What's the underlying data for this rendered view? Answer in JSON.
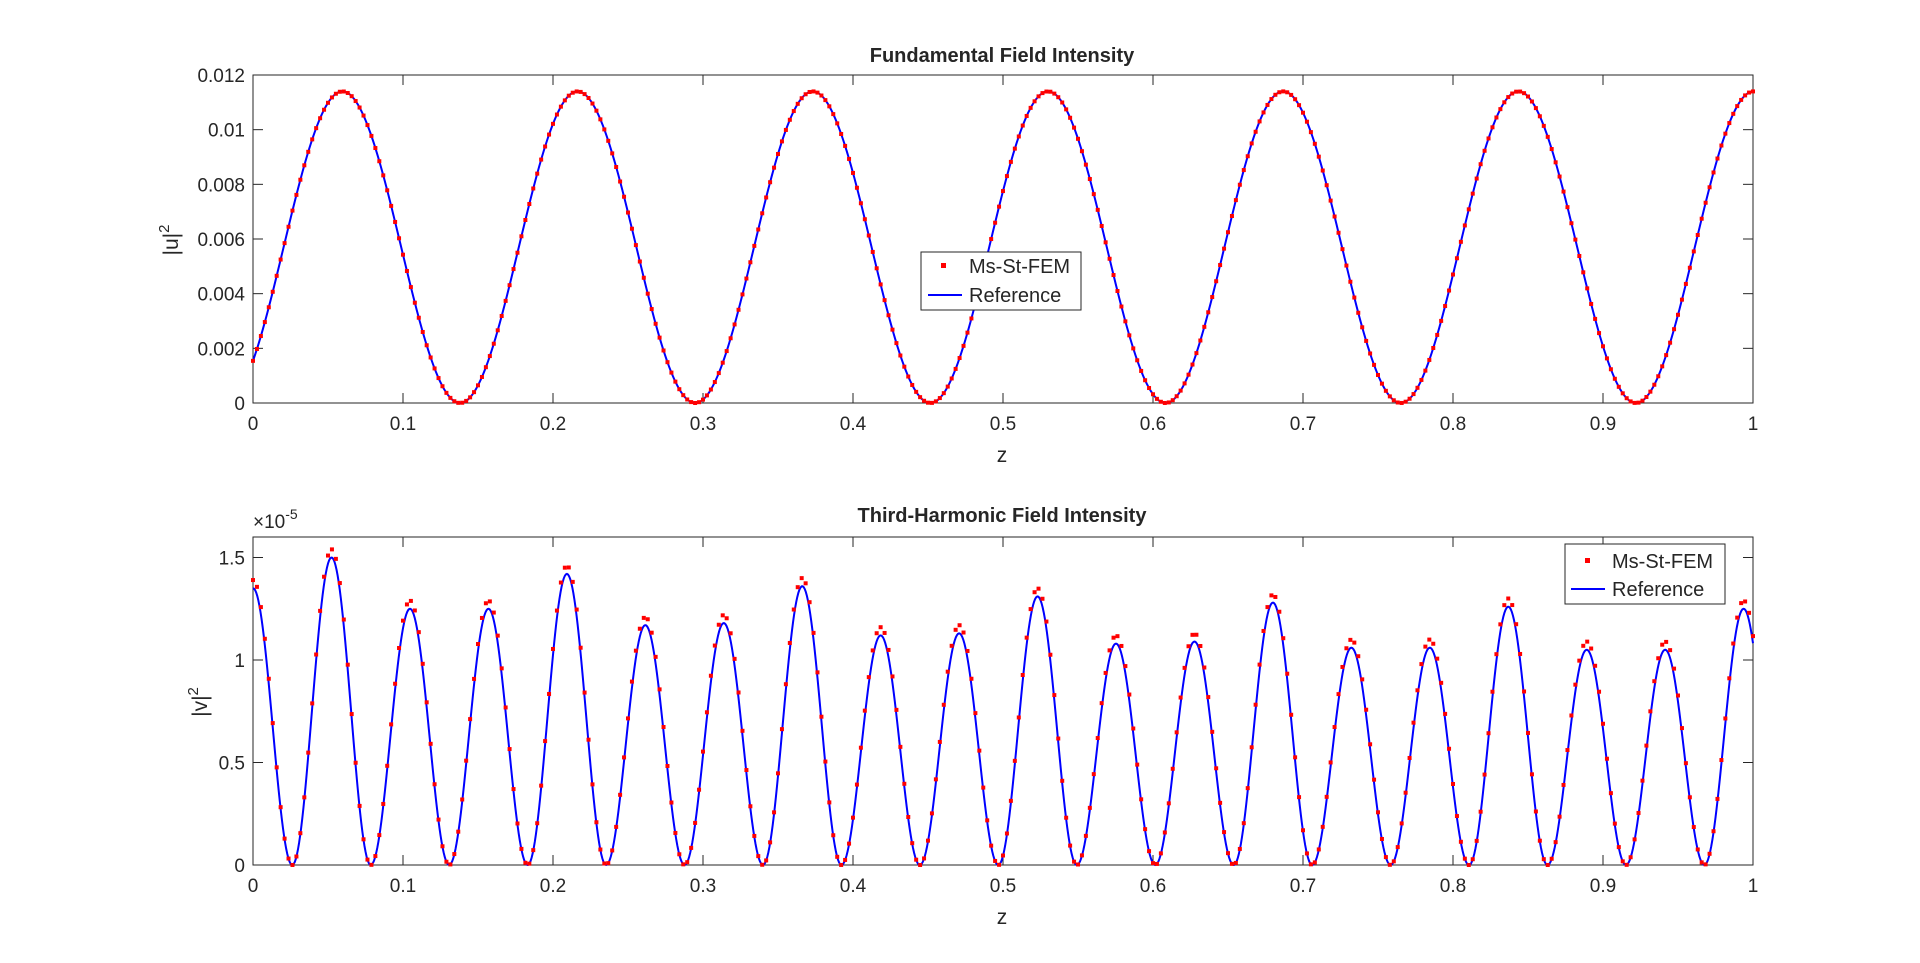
{
  "colors": {
    "marker": "#ff0000",
    "line": "#0000ff",
    "axis": "#262626",
    "background": "#ffffff"
  },
  "chart_data": [
    {
      "type": "line",
      "title": "Fundamental Field Intensity",
      "xlabel": "z",
      "ylabel_base": "|u|",
      "ylabel_exp": "2",
      "xlim": [
        0,
        1
      ],
      "ylim": [
        0,
        0.012
      ],
      "xticks": [
        0,
        0.1,
        0.2,
        0.3,
        0.4,
        0.5,
        0.6,
        0.7,
        0.8,
        0.9,
        1
      ],
      "xtick_labels": [
        "0",
        "0.1",
        "0.2",
        "0.3",
        "0.4",
        "0.5",
        "0.6",
        "0.7",
        "0.8",
        "0.9",
        "1"
      ],
      "yticks": [
        0,
        0.002,
        0.004,
        0.006,
        0.008,
        0.01,
        0.012
      ],
      "ytick_labels": [
        "0",
        "0.002",
        "0.004",
        "0.006",
        "0.008",
        "0.01",
        "0.012"
      ],
      "legend_position": "center",
      "grid": false,
      "series": [
        {
          "name": "Ms-St-FEM",
          "style": "markers",
          "color": "#ff0000",
          "model": {
            "form": "A*sin^2(k*z+phi)",
            "A": 0.0114,
            "period": 0.1568,
            "min_at": 0.138,
            "z_start": 0,
            "z_end": 1,
            "samples": 380
          }
        },
        {
          "name": "Reference",
          "style": "line",
          "color": "#0000ff",
          "model": {
            "form": "A*sin^2(k*z+phi)",
            "A": 0.0114,
            "period": 0.1568,
            "min_at": 0.138,
            "z_start": 0,
            "z_end": 1,
            "samples": 1200
          }
        }
      ],
      "key_points": {
        "maxima_z": [
          0.06,
          0.216,
          0.373,
          0.53,
          0.687,
          0.843,
          1.0
        ],
        "maxima_value": 0.0114,
        "minima_z": [
          0.138,
          0.295,
          0.452,
          0.608,
          0.765,
          0.922
        ],
        "value_at_z0": 0.0015
      }
    },
    {
      "type": "line",
      "title": "Third-Harmonic Field Intensity",
      "xlabel": "z",
      "ylabel_base": "|v|",
      "ylabel_exp": "2",
      "y_multiplier_base": "×10",
      "y_multiplier_exp": "-5",
      "xlim": [
        0,
        1
      ],
      "ylim": [
        0,
        1.6
      ],
      "xticks": [
        0,
        0.1,
        0.2,
        0.3,
        0.4,
        0.5,
        0.6,
        0.7,
        0.8,
        0.9,
        1
      ],
      "xtick_labels": [
        "0",
        "0.1",
        "0.2",
        "0.3",
        "0.4",
        "0.5",
        "0.6",
        "0.7",
        "0.8",
        "0.9",
        "1"
      ],
      "yticks": [
        0,
        0.5,
        1,
        1.5
      ],
      "ytick_labels": [
        "0",
        "0.5",
        "1",
        "1.5"
      ],
      "legend_position": "top-right",
      "grid": false,
      "series": [
        {
          "name": "Ms-St-FEM",
          "style": "markers",
          "color": "#ff0000",
          "model": {
            "form": "piecewise sin^2 lobes",
            "z_start": 0,
            "z_end": 1,
            "samples": 380,
            "peak_offset": 0.04
          }
        },
        {
          "name": "Reference",
          "style": "line",
          "color": "#0000ff",
          "model": {
            "form": "piecewise sin^2 lobes",
            "z_start": 0,
            "z_end": 1,
            "samples": 1400,
            "peak_offset": 0
          }
        }
      ],
      "zeros_z": [
        0.0262,
        0.0785,
        0.1308,
        0.1831,
        0.2354,
        0.2877,
        0.34,
        0.3923,
        0.4446,
        0.4969,
        0.5492,
        0.6015,
        0.6538,
        0.7061,
        0.7584,
        0.8107,
        0.863,
        0.9153,
        0.9676
      ],
      "peaks": [
        {
          "z": 0.0,
          "value": 1.35
        },
        {
          "z": 0.052,
          "value": 1.5
        },
        {
          "z": 0.105,
          "value": 1.25
        },
        {
          "z": 0.157,
          "value": 1.25
        },
        {
          "z": 0.209,
          "value": 1.42
        },
        {
          "z": 0.262,
          "value": 1.17
        },
        {
          "z": 0.314,
          "value": 1.18
        },
        {
          "z": 0.366,
          "value": 1.36
        },
        {
          "z": 0.419,
          "value": 1.12
        },
        {
          "z": 0.471,
          "value": 1.13
        },
        {
          "z": 0.523,
          "value": 1.31
        },
        {
          "z": 0.576,
          "value": 1.08
        },
        {
          "z": 0.628,
          "value": 1.09
        },
        {
          "z": 0.68,
          "value": 1.28
        },
        {
          "z": 0.733,
          "value": 1.06
        },
        {
          "z": 0.785,
          "value": 1.06
        },
        {
          "z": 0.837,
          "value": 1.26
        },
        {
          "z": 0.89,
          "value": 1.05
        },
        {
          "z": 0.942,
          "value": 1.05
        },
        {
          "z": 1.0,
          "value": 1.25
        }
      ]
    }
  ]
}
